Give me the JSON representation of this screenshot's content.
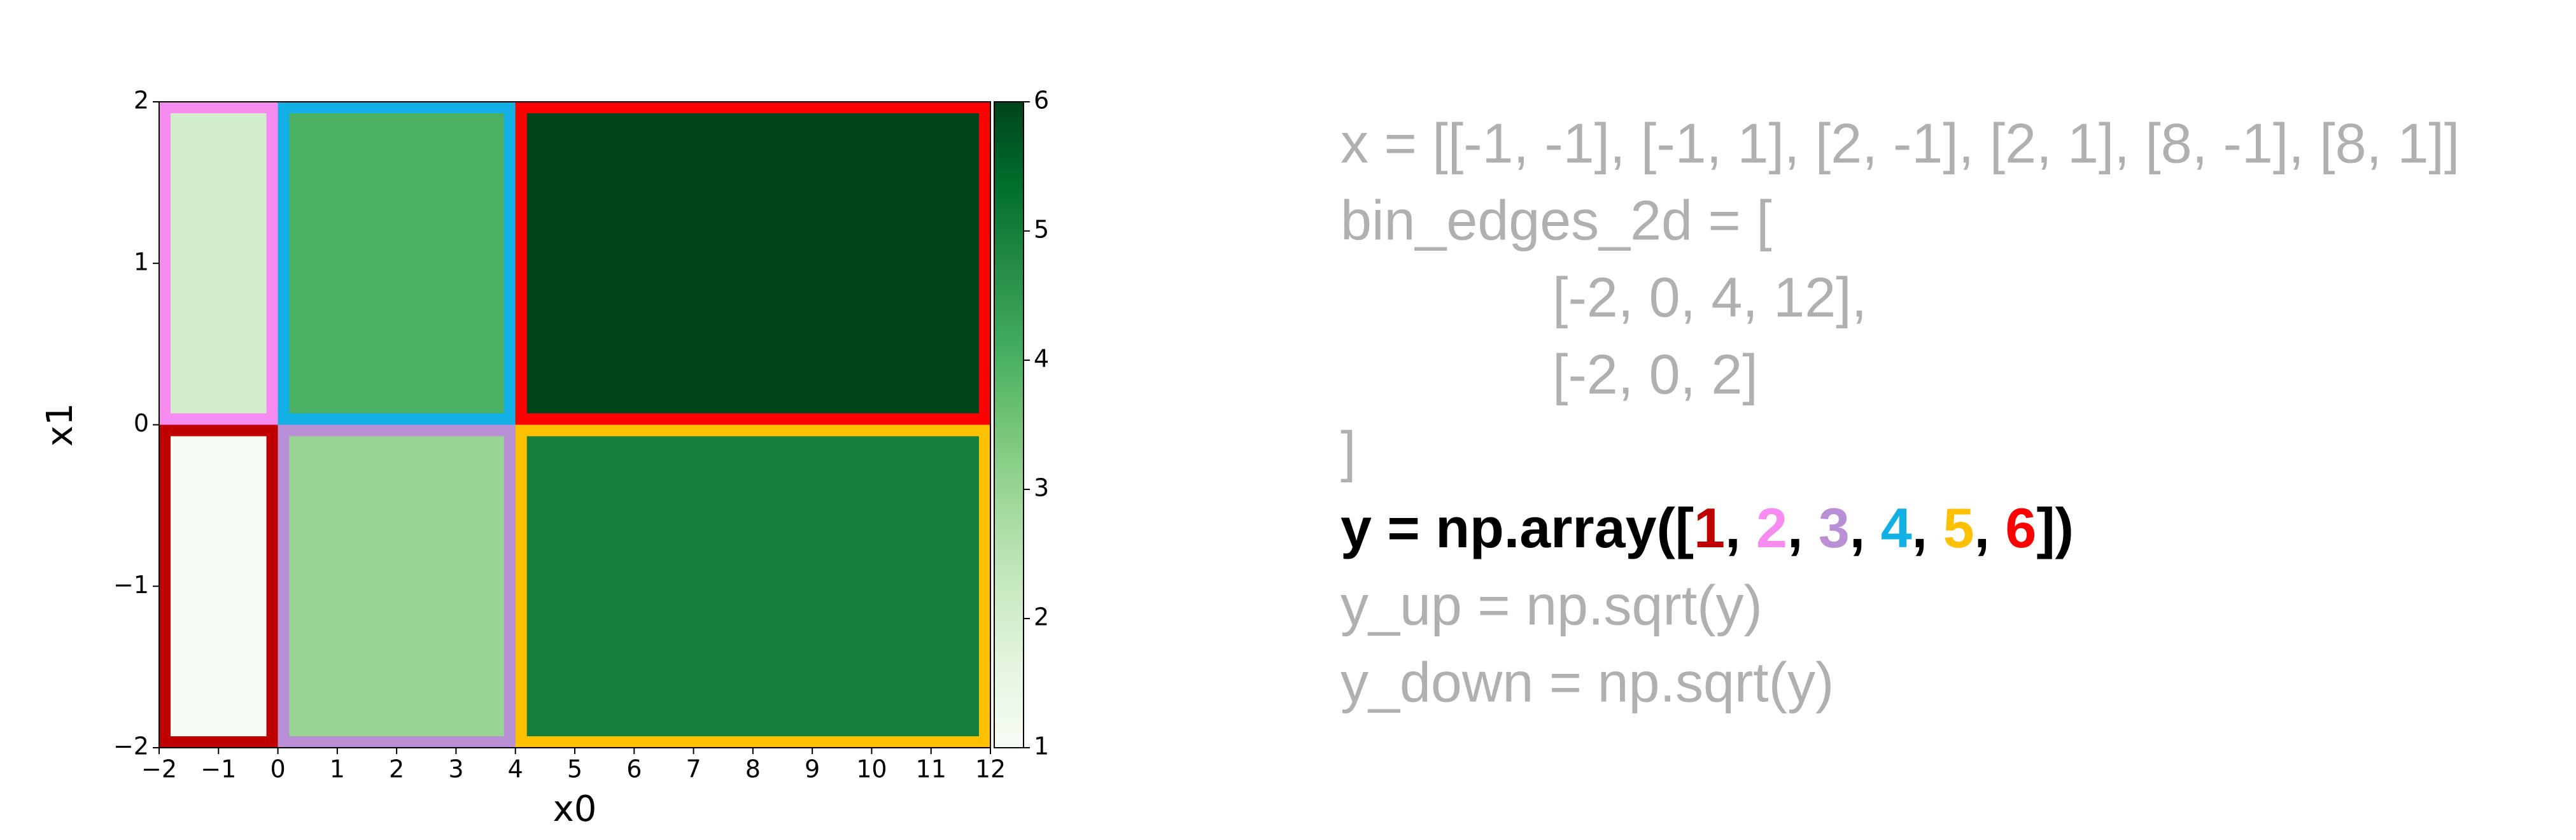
{
  "chart_data": {
    "type": "heatmap",
    "xlabel": "x0",
    "ylabel": "x1",
    "x_edges": [
      -2,
      0,
      4,
      12
    ],
    "y_edges": [
      -2,
      0,
      2
    ],
    "values": [
      [
        1,
        3,
        5
      ],
      [
        2,
        4,
        6
      ]
    ],
    "border_colors": [
      [
        "#c00000",
        "#b98fd6",
        "#ffc000"
      ],
      [
        "#f78cf0",
        "#13b0e6",
        "#ff0000"
      ]
    ],
    "colormap": "Greens",
    "xlim": [
      -2,
      12
    ],
    "ylim": [
      -2,
      2
    ],
    "xticks": [
      {
        "value": -2,
        "label": "−2"
      },
      {
        "value": -1,
        "label": "−1"
      },
      0,
      1,
      2,
      3,
      4,
      5,
      6,
      7,
      8,
      9,
      10,
      11,
      12
    ],
    "yticks": [
      {
        "value": -2,
        "label": "−2"
      },
      {
        "value": -1,
        "label": "−1"
      },
      0,
      1,
      2
    ],
    "colorbar": {
      "lim": [
        1,
        6
      ],
      "ticks": [
        1,
        2,
        3,
        4,
        5,
        6
      ]
    }
  },
  "code": {
    "before": [
      "x = [[-1, -1], [-1, 1], [2, -1], [2, 1], [8, -1], [8, 1]]",
      "bin_edges_2d = [",
      "[-2, 0, 4, 12],",
      "[-2, 0, 2]",
      "]"
    ],
    "highlight": [
      {
        "text": "y = np.array([",
        "color": "#000000"
      },
      {
        "text": "1",
        "color": "#c00000"
      },
      {
        "text": ", ",
        "color": "#000000"
      },
      {
        "text": "2",
        "color": "#f78cf0"
      },
      {
        "text": ", ",
        "color": "#000000"
      },
      {
        "text": "3",
        "color": "#b98fd6"
      },
      {
        "text": ", ",
        "color": "#000000"
      },
      {
        "text": "4",
        "color": "#13b0e6"
      },
      {
        "text": ", ",
        "color": "#000000"
      },
      {
        "text": "5",
        "color": "#ffc000"
      },
      {
        "text": ", ",
        "color": "#000000"
      },
      {
        "text": "6",
        "color": "#ff0000"
      },
      {
        "text": "])",
        "color": "#000000"
      }
    ],
    "after": [
      "y_up = np.sqrt(y)",
      "y_down = np.sqrt(y)"
    ]
  }
}
